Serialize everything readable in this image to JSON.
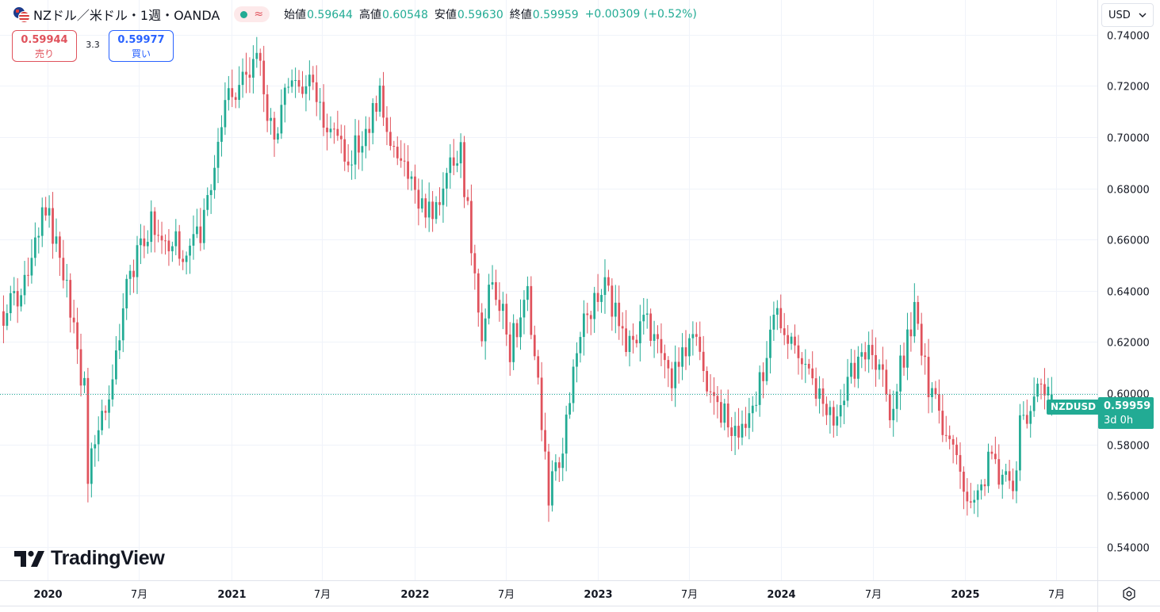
{
  "header": {
    "symbol_title": "NZドル／米ドル・1週・OANDA",
    "flag_icon": "nzd-usd-flag-icon",
    "status_icons": [
      "market-open-dot-icon",
      "replay-wave-icon"
    ],
    "ohlc": [
      {
        "label": "始値",
        "value": "0.59644"
      },
      {
        "label": "高値",
        "value": "0.60548"
      },
      {
        "label": "安値",
        "value": "0.59630"
      },
      {
        "label": "終値",
        "value": "0.59959"
      }
    ],
    "change": "+0.00309 (+0.52%)"
  },
  "trade": {
    "sell_price": "0.59944",
    "sell_label": "売り",
    "spread": "3.3",
    "buy_price": "0.59977",
    "buy_label": "買い"
  },
  "currency_select": {
    "value": "USD"
  },
  "last_price": {
    "symbol": "NZDUSD",
    "value": "0.59959",
    "countdown": "3d 0h"
  },
  "logo": {
    "text": "TradingView"
  },
  "colors": {
    "up": "#22ab94",
    "down": "#e0525c",
    "grid": "#f0f3fa",
    "axis_text": "#131722"
  },
  "chart_data": {
    "type": "candlestick",
    "title": "NZドル／米ドル・1週・OANDA",
    "interval": "1W",
    "yaxis": {
      "ticks": [
        "0.74000",
        "0.72000",
        "0.70000",
        "0.68000",
        "0.66000",
        "0.64000",
        "0.62000",
        "0.60000",
        "0.58000",
        "0.56000",
        "0.54000"
      ],
      "range": [
        0.527,
        0.7535
      ]
    },
    "xaxis": {
      "ticks": [
        {
          "label": "2020",
          "date": "2020-01-01",
          "bold": true
        },
        {
          "label": "7月",
          "date": "2020-07-01",
          "bold": false
        },
        {
          "label": "2021",
          "date": "2021-01-01",
          "bold": true
        },
        {
          "label": "7月",
          "date": "2021-07-01",
          "bold": false
        },
        {
          "label": "2022",
          "date": "2022-01-01",
          "bold": true
        },
        {
          "label": "7月",
          "date": "2022-07-01",
          "bold": false
        },
        {
          "label": "2023",
          "date": "2023-01-01",
          "bold": true
        },
        {
          "label": "7月",
          "date": "2023-07-01",
          "bold": false
        },
        {
          "label": "2024",
          "date": "2024-01-01",
          "bold": true
        },
        {
          "label": "7月",
          "date": "2024-07-01",
          "bold": false
        },
        {
          "label": "2025",
          "date": "2025-01-01",
          "bold": true
        },
        {
          "label": "7月",
          "date": "2025-07-01",
          "bold": false
        }
      ],
      "range": [
        "2019-09-29",
        "2025-09-21"
      ]
    },
    "grid": true,
    "last_value": 0.59959,
    "anchors": [
      [
        "2019-10-06",
        0.632
      ],
      [
        "2019-11-10",
        0.64
      ],
      [
        "2019-12-29",
        0.673
      ],
      [
        "2020-02-02",
        0.648
      ],
      [
        "2020-02-23",
        0.625
      ],
      [
        "2020-03-15",
        0.6
      ],
      [
        "2020-03-22",
        0.57
      ],
      [
        "2020-04-12",
        0.59
      ],
      [
        "2020-05-10",
        0.605
      ],
      [
        "2020-06-07",
        0.645
      ],
      [
        "2020-07-26",
        0.665
      ],
      [
        "2020-09-27",
        0.657
      ],
      [
        "2020-11-01",
        0.663
      ],
      [
        "2020-12-27",
        0.717
      ],
      [
        "2021-02-21",
        0.73
      ],
      [
        "2021-03-28",
        0.7
      ],
      [
        "2021-05-02",
        0.725
      ],
      [
        "2021-05-30",
        0.721
      ],
      [
        "2021-08-22",
        0.69
      ],
      [
        "2021-10-24",
        0.716
      ],
      [
        "2021-11-21",
        0.695
      ],
      [
        "2022-01-02",
        0.683
      ],
      [
        "2022-01-23",
        0.668
      ],
      [
        "2022-04-03",
        0.694
      ],
      [
        "2022-05-15",
        0.625
      ],
      [
        "2022-06-05",
        0.648
      ],
      [
        "2022-07-10",
        0.618
      ],
      [
        "2022-08-14",
        0.64
      ],
      [
        "2022-09-25",
        0.562
      ],
      [
        "2022-10-16",
        0.57
      ],
      [
        "2022-11-20",
        0.62
      ],
      [
        "2023-01-15",
        0.642
      ],
      [
        "2023-02-12",
        0.628
      ],
      [
        "2023-03-05",
        0.617
      ],
      [
        "2023-04-09",
        0.627
      ],
      [
        "2023-05-28",
        0.603
      ],
      [
        "2023-07-16",
        0.627
      ],
      [
        "2023-08-13",
        0.596
      ],
      [
        "2023-10-22",
        0.583
      ],
      [
        "2023-11-19",
        0.605
      ],
      [
        "2023-12-24",
        0.632
      ],
      [
        "2024-02-11",
        0.611
      ],
      [
        "2024-04-14",
        0.589
      ],
      [
        "2024-05-19",
        0.611
      ],
      [
        "2024-07-07",
        0.614
      ],
      [
        "2024-08-04",
        0.593
      ],
      [
        "2024-09-22",
        0.63
      ],
      [
        "2024-10-27",
        0.598
      ],
      [
        "2024-12-08",
        0.578
      ],
      [
        "2025-01-12",
        0.56
      ],
      [
        "2025-02-23",
        0.574
      ],
      [
        "2025-04-06",
        0.562
      ],
      [
        "2025-04-20",
        0.588
      ],
      [
        "2025-05-25",
        0.6
      ],
      [
        "2025-06-22",
        0.5984
      ]
    ]
  }
}
